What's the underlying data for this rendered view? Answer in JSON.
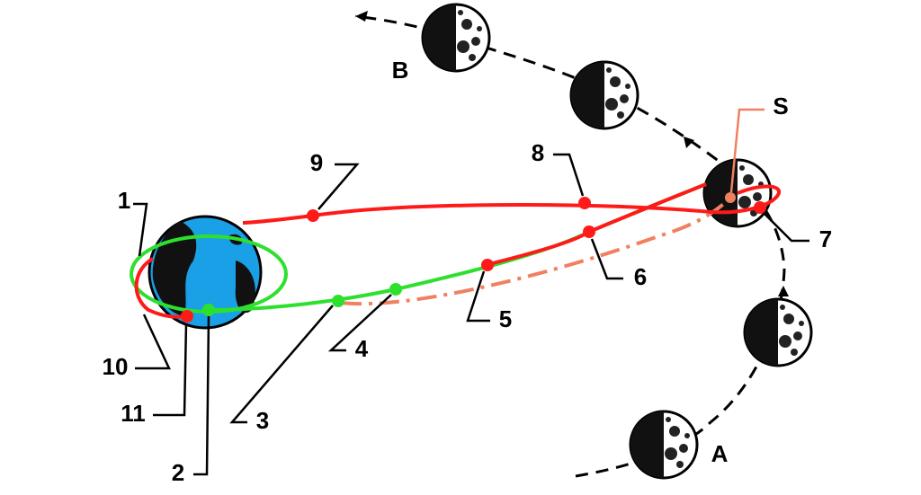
{
  "labels": [
    "1",
    "2",
    "3",
    "4",
    "5",
    "6",
    "7",
    "8",
    "9",
    "10",
    "11",
    "S",
    "A",
    "B"
  ]
}
